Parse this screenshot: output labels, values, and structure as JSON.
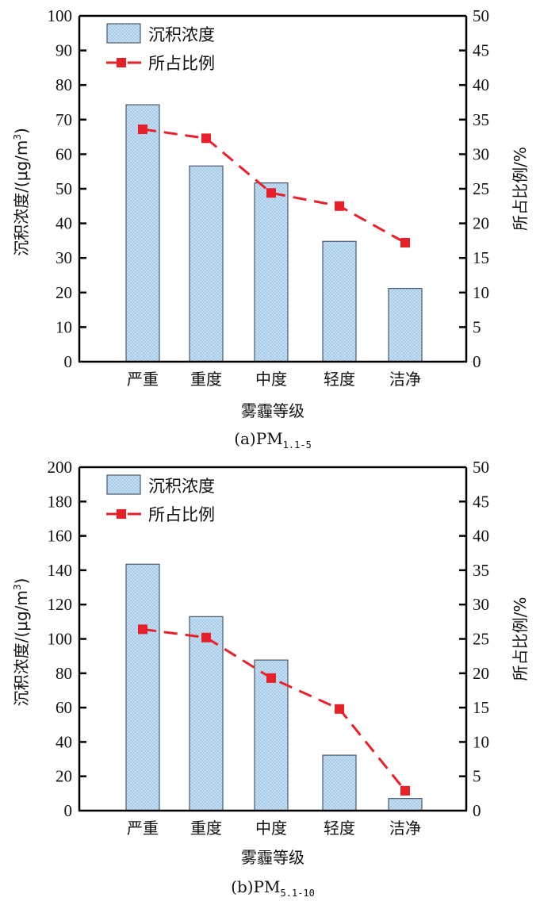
{
  "chart_data": [
    {
      "type": "bar",
      "title": "",
      "caption_prefix": "(a)PM",
      "caption_subscript": "1.1-5",
      "categories": [
        "严重",
        "重度",
        "中度",
        "轻度",
        "洁净"
      ],
      "xlabel": "雾霾等级",
      "ylabel": "沉积浓度/(μg/m³)",
      "ylabel_parts": {
        "main": "沉积浓度/(μg/m",
        "sup": "3",
        "end": ")"
      },
      "y2label": "所占比例/%",
      "ylim": [
        0,
        100
      ],
      "y2lim": [
        0,
        50
      ],
      "yticks": [
        0,
        10,
        20,
        30,
        40,
        50,
        60,
        70,
        80,
        90,
        100
      ],
      "y2ticks": [
        0,
        5,
        10,
        15,
        20,
        25,
        30,
        35,
        40,
        45,
        50
      ],
      "grid": false,
      "legend_position": "top-left",
      "series": [
        {
          "name": "沉积浓度",
          "type": "bar",
          "axis": "left",
          "values": [
            74.3,
            56.6,
            51.7,
            34.8,
            21.2
          ],
          "color": "#bcdaf2",
          "edge": "#4a5a6a"
        },
        {
          "name": "所占比例",
          "type": "line",
          "axis": "right",
          "style": "dashed",
          "marker": "square",
          "values": [
            33.6,
            32.3,
            24.4,
            22.5,
            17.2
          ],
          "color": "#e8202a"
        }
      ]
    },
    {
      "type": "bar",
      "title": "",
      "caption_prefix": "(b)PM",
      "caption_subscript": "5.1-10",
      "categories": [
        "严重",
        "重度",
        "中度",
        "轻度",
        "洁净"
      ],
      "xlabel": "雾霾等级",
      "ylabel": "沉积浓度/(μg/m³)",
      "ylabel_parts": {
        "main": "沉积浓度/(μg/m",
        "sup": "3",
        "end": ")"
      },
      "y2label": "所占比例/%",
      "ylim": [
        0,
        200
      ],
      "y2lim": [
        0,
        50
      ],
      "yticks": [
        0,
        20,
        40,
        60,
        80,
        100,
        120,
        140,
        160,
        180,
        200
      ],
      "y2ticks": [
        0,
        5,
        10,
        15,
        20,
        25,
        30,
        35,
        40,
        45,
        50
      ],
      "grid": false,
      "legend_position": "top-left",
      "series": [
        {
          "name": "沉积浓度",
          "type": "bar",
          "axis": "left",
          "values": [
            143.5,
            113.0,
            87.7,
            32.3,
            7.1
          ],
          "color": "#bcdaf2",
          "edge": "#4a5a6a"
        },
        {
          "name": "所占比例",
          "type": "line",
          "axis": "right",
          "style": "dashed",
          "marker": "square",
          "values": [
            26.4,
            25.2,
            19.3,
            14.8,
            2.9
          ],
          "color": "#e8202a"
        }
      ]
    }
  ]
}
